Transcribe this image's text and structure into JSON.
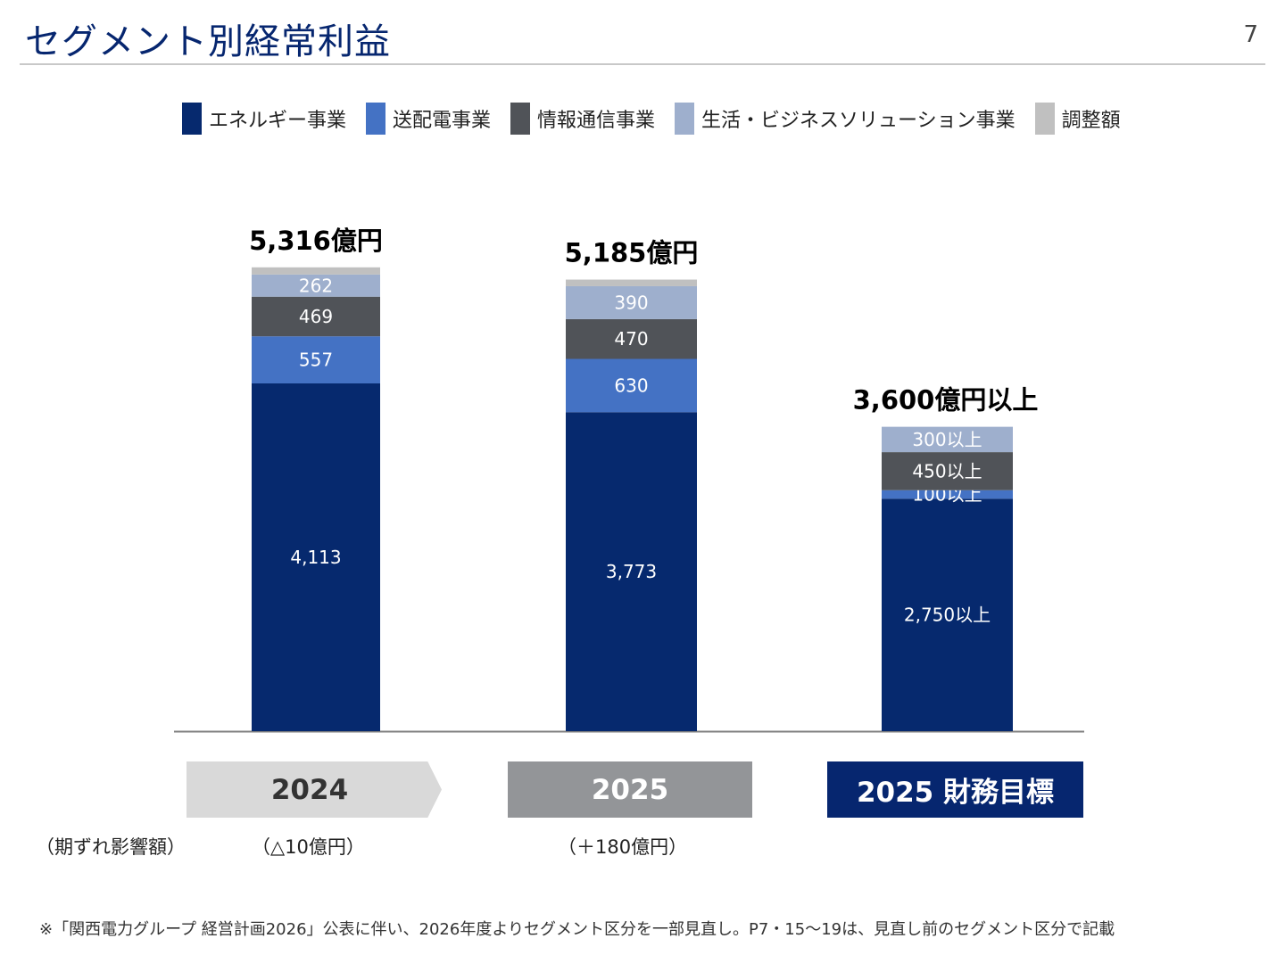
{
  "header": {
    "title": "セグメント別経常利益",
    "page_number": "7"
  },
  "colors": {
    "energy": "#06296e",
    "transmission": "#4472c4",
    "it": "#505358",
    "life": "#9eafcd",
    "adjustment": "#c0c0c0"
  },
  "chart_data": {
    "type": "bar",
    "stacked": true,
    "categories": [
      "2024",
      "2025",
      "2025 財務目標"
    ],
    "series": [
      {
        "name": "エネルギー事業",
        "color": "#06296e",
        "values": [
          4113,
          3773,
          2750
        ],
        "labels": [
          "4,113",
          "3,773",
          "2,750以上"
        ]
      },
      {
        "name": "送配電事業",
        "color": "#4472c4",
        "values": [
          557,
          630,
          100
        ],
        "labels": [
          "557",
          "630",
          "100以上"
        ]
      },
      {
        "name": "情報通信事業",
        "color": "#505358",
        "values": [
          469,
          470,
          450
        ],
        "labels": [
          "469",
          "470",
          "450以上"
        ]
      },
      {
        "name": "生活・ビジネスソリューション事業",
        "color": "#9eafcd",
        "values": [
          262,
          390,
          300
        ],
        "labels": [
          "262",
          "390",
          "300以上"
        ]
      },
      {
        "name": "調整額",
        "color": "#c0c0c0",
        "values": [
          85,
          78,
          0
        ],
        "labels": [
          "",
          "",
          ""
        ]
      }
    ],
    "totals": [
      "5,316億円",
      "5,185億円",
      "3,600億円以上"
    ],
    "legend_position": "top",
    "grid": false
  },
  "impact": {
    "label": "（期ずれ影響額）",
    "values": [
      "（△10億円）",
      "（＋180億円）"
    ]
  },
  "footnote": "※「関西電力グループ 経営計画2026」公表に伴い、2026年度よりセグメント区分を一部見直し。P7・15～19は、見直し前のセグメント区分で記載"
}
